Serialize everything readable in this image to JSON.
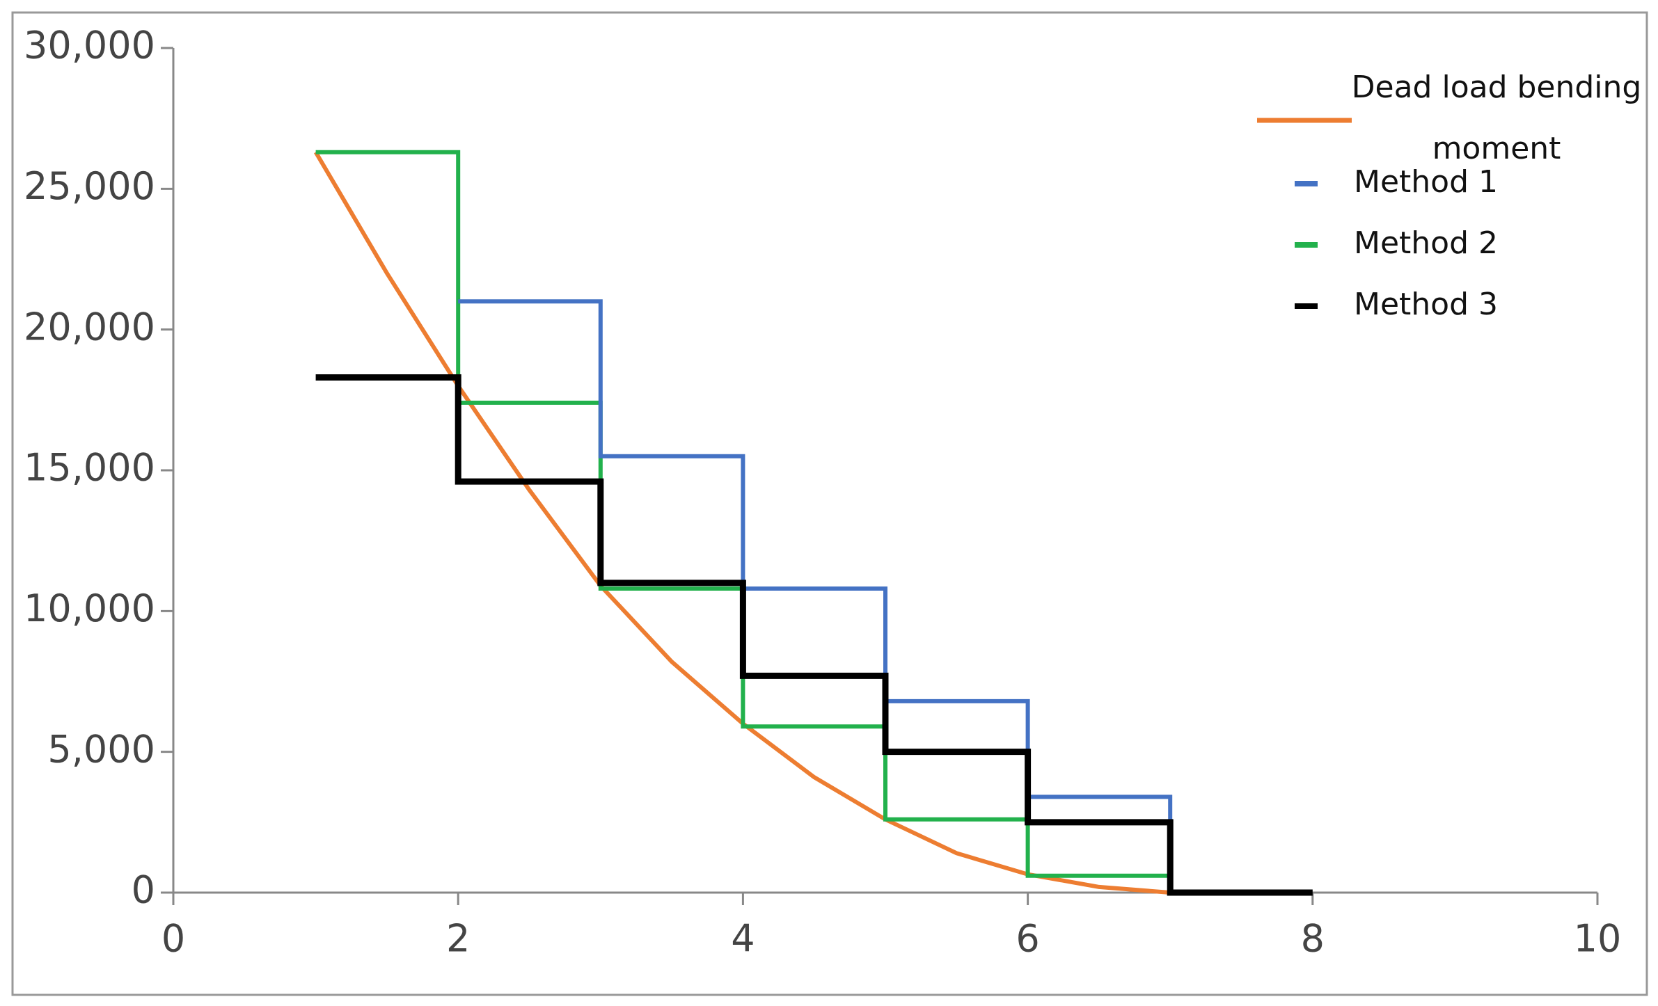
{
  "chart_data": {
    "type": "line",
    "xlim": [
      0,
      10
    ],
    "xticks": [
      0,
      2,
      4,
      6,
      8,
      10
    ],
    "ylim": [
      0,
      30000
    ],
    "yticks": [
      0,
      {
        "value": 5000,
        "label": "5,000"
      },
      {
        "value": 10000,
        "label": "10,000"
      },
      {
        "value": 15000,
        "label": "15,000"
      },
      {
        "value": 20000,
        "label": "20,000"
      },
      {
        "value": 25000,
        "label": "25,000"
      },
      {
        "value": 30000,
        "label": "30,000"
      }
    ],
    "legend": "upper right",
    "series": [
      {
        "name": "Dead load bending moment",
        "color": "#ed7d31",
        "x": [
          1,
          1.5,
          2,
          2.5,
          3,
          3.5,
          4,
          4.5,
          5,
          5.5,
          6,
          6.5,
          7
        ],
        "values": [
          26300,
          22000,
          18000,
          14300,
          10900,
          8200,
          6000,
          4100,
          2600,
          1400,
          650,
          200,
          0
        ]
      },
      {
        "name": "Method 1",
        "color": "#4472c4",
        "x": [
          2,
          3,
          3,
          4,
          4,
          5,
          5,
          6,
          6,
          7,
          7
        ],
        "values": [
          21000,
          21000,
          15500,
          15500,
          10800,
          10800,
          6800,
          6800,
          3400,
          3400,
          2600
        ]
      },
      {
        "name": "Method 2",
        "color": "#22b14c",
        "x": [
          1,
          2,
          2,
          3,
          3,
          4,
          4,
          5,
          5,
          6,
          6,
          7,
          7
        ],
        "values": [
          26300,
          26300,
          17400,
          17400,
          10800,
          10800,
          5900,
          5900,
          2600,
          2600,
          600,
          600,
          0
        ]
      },
      {
        "name": "Method 3",
        "color": "#000000",
        "x": [
          1,
          2,
          2,
          3,
          3,
          4,
          4,
          5,
          5,
          6,
          6,
          7,
          7,
          8
        ],
        "values": [
          18300,
          18300,
          14600,
          14600,
          11000,
          11000,
          7700,
          7700,
          5000,
          5000,
          2500,
          2500,
          0,
          0
        ]
      }
    ]
  }
}
